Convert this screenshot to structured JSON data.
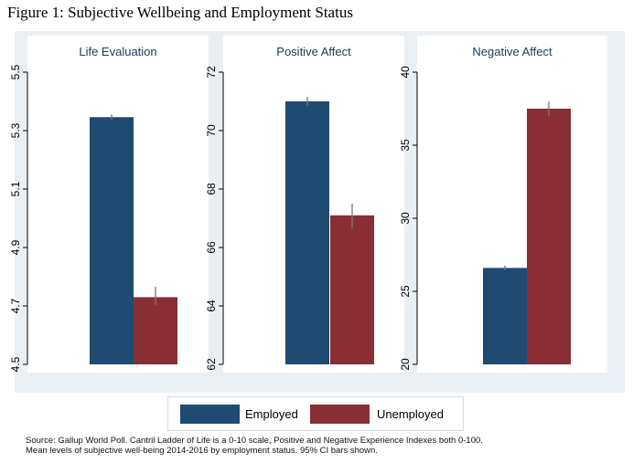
{
  "figure_title": "Figure 1: Subjective Wellbeing and Employment Status",
  "legend": [
    {
      "label": "Employed",
      "color": "#1f4a72"
    },
    {
      "label": "Unemployed",
      "color": "#8a2e35"
    }
  ],
  "source_note": {
    "line1": "Source: Gallup World Poll. Cantril Ladder of Life is a 0-10 scale, Positive and Negative Experience Indexes both 0-100.",
    "line2": "Mean levels of subjective well-being 2014-2016 by employment status. 95% CI bars shown."
  },
  "chart_data": [
    {
      "type": "bar",
      "title": "Life Evaluation",
      "categories": [
        "Employed",
        "Unemployed"
      ],
      "values": [
        5.346,
        4.73
      ],
      "ci": [
        [
          5.338,
          5.355
        ],
        [
          4.702,
          4.765
        ]
      ],
      "ylim": [
        4.5,
        5.5
      ],
      "yticks": [
        4.5,
        4.7,
        4.9,
        5.1,
        5.3,
        5.5
      ],
      "ytick_labels": [
        "4.5",
        "4.7",
        "4.9",
        "5.1",
        "5.3",
        "5.5"
      ],
      "grid": false
    },
    {
      "type": "bar",
      "title": "Positive Affect",
      "categories": [
        "Employed",
        "Unemployed"
      ],
      "values": [
        71.0,
        67.1
      ],
      "ci": [
        [
          70.85,
          71.15
        ],
        [
          66.65,
          67.5
        ]
      ],
      "ylim": [
        62,
        72
      ],
      "yticks": [
        62,
        64,
        66,
        68,
        70,
        72
      ],
      "ytick_labels": [
        "62",
        "64",
        "66",
        "68",
        "70",
        "72"
      ],
      "grid": false
    },
    {
      "type": "bar",
      "title": "Negative Affect",
      "categories": [
        "Employed",
        "Unemployed"
      ],
      "values": [
        26.6,
        37.5
      ],
      "ci": [
        [
          26.45,
          26.75
        ],
        [
          37.0,
          38.0
        ]
      ],
      "ylim": [
        20,
        40
      ],
      "yticks": [
        20,
        25,
        30,
        35,
        40
      ],
      "ytick_labels": [
        "20",
        "25",
        "30",
        "35",
        "40"
      ],
      "grid": false
    }
  ]
}
